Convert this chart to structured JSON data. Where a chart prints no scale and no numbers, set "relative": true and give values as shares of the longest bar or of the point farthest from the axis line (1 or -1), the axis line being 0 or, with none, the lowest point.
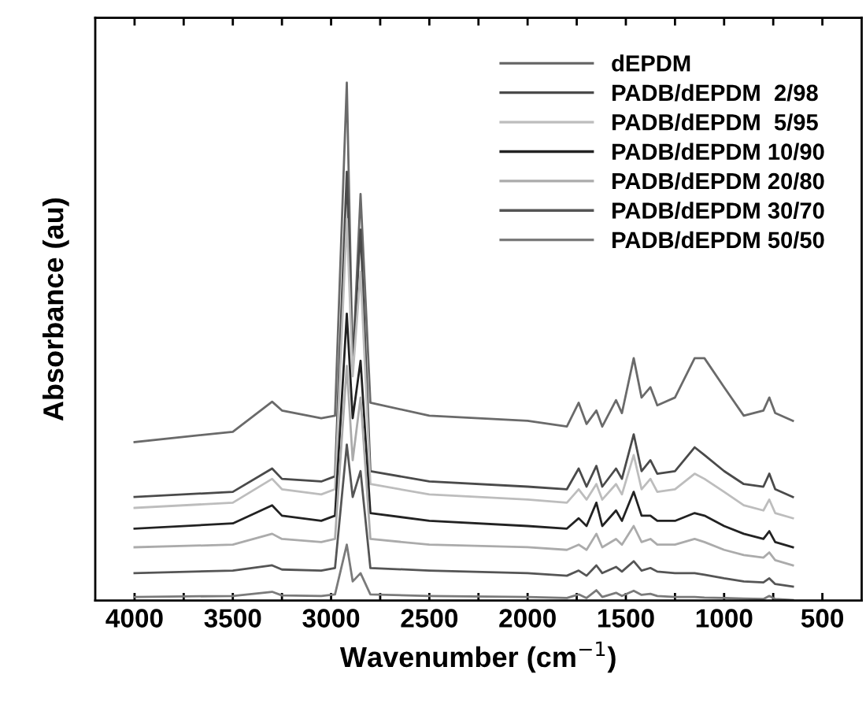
{
  "chart_data": {
    "type": "line",
    "xlabel": "Wavenumber (cm$^{−1}$)",
    "ylabel": "Absorbance (au)",
    "relative": true,
    "xlim": [
      4200,
      300
    ],
    "xticks": [
      4000,
      {
        "value": 3750,
        "label": null
      },
      3500,
      {
        "value": 3250,
        "label": null
      },
      3000,
      {
        "value": 2750,
        "label": null
      },
      2500,
      {
        "value": 2250,
        "label": null
      },
      2000,
      {
        "value": 1750,
        "label": null
      },
      1500,
      {
        "value": 1250,
        "label": null
      },
      1000,
      {
        "value": 750,
        "label": null
      },
      500
    ],
    "x": [
      4000,
      3500,
      3300,
      3250,
      3050,
      2980,
      2920,
      2890,
      2850,
      2800,
      2500,
      2000,
      1800,
      1740,
      1700,
      1650,
      1620,
      1550,
      1520,
      1460,
      1420,
      1375,
      1340,
      1250,
      1150,
      1100,
      1000,
      900,
      800,
      770,
      740,
      650
    ],
    "legend": "top right",
    "grid": false,
    "marker": "none",
    "line_style": "solid",
    "series": [
      {
        "name": "dEPDM",
        "color": "#6a6a6a",
        "values": [
          0.306,
          0.326,
          0.384,
          0.367,
          0.352,
          0.357,
          1.0,
          0.453,
          0.785,
          0.382,
          0.357,
          0.347,
          0.336,
          0.382,
          0.341,
          0.367,
          0.336,
          0.387,
          0.362,
          0.468,
          0.392,
          0.412,
          0.377,
          0.392,
          0.468,
          0.468,
          0.412,
          0.357,
          0.367,
          0.392,
          0.362,
          0.347
        ]
      },
      {
        "name": "PADB/dEPDM  2/98",
        "color": "#4a4a4a",
        "values": [
          0.2,
          0.21,
          0.255,
          0.235,
          0.23,
          0.24,
          0.828,
          0.453,
          0.716,
          0.25,
          0.23,
          0.22,
          0.215,
          0.255,
          0.22,
          0.26,
          0.22,
          0.255,
          0.235,
          0.321,
          0.25,
          0.271,
          0.245,
          0.25,
          0.296,
          0.281,
          0.25,
          0.225,
          0.22,
          0.245,
          0.215,
          0.2
        ]
      },
      {
        "name": "PADB/dEPDM  5/95",
        "color": "#bdbdbd",
        "values": [
          0.179,
          0.189,
          0.235,
          0.215,
          0.205,
          0.215,
          0.737,
          0.433,
          0.635,
          0.225,
          0.205,
          0.195,
          0.189,
          0.215,
          0.195,
          0.225,
          0.195,
          0.225,
          0.205,
          0.281,
          0.215,
          0.235,
          0.21,
          0.215,
          0.245,
          0.235,
          0.21,
          0.184,
          0.174,
          0.195,
          0.169,
          0.159
        ]
      },
      {
        "name": "PADB/dEPDM 10/90",
        "color": "#222222",
        "values": [
          0.139,
          0.149,
          0.184,
          0.164,
          0.154,
          0.164,
          0.554,
          0.352,
          0.463,
          0.169,
          0.154,
          0.144,
          0.139,
          0.159,
          0.144,
          0.189,
          0.144,
          0.174,
          0.154,
          0.21,
          0.164,
          0.164,
          0.154,
          0.154,
          0.169,
          0.164,
          0.144,
          0.129,
          0.119,
          0.134,
          0.113,
          0.103
        ]
      },
      {
        "name": "PADB/dEPDM 20/80",
        "color": "#ababab",
        "values": [
          0.103,
          0.108,
          0.129,
          0.119,
          0.113,
          0.119,
          0.453,
          0.271,
          0.392,
          0.119,
          0.108,
          0.103,
          0.098,
          0.108,
          0.098,
          0.129,
          0.103,
          0.119,
          0.108,
          0.144,
          0.113,
          0.119,
          0.108,
          0.108,
          0.119,
          0.113,
          0.098,
          0.088,
          0.083,
          0.093,
          0.078,
          0.068
        ]
      },
      {
        "name": "PADB/dEPDM 30/70",
        "color": "#555555",
        "values": [
          0.053,
          0.058,
          0.068,
          0.06,
          0.058,
          0.063,
          0.301,
          0.2,
          0.25,
          0.063,
          0.058,
          0.053,
          0.048,
          0.058,
          0.048,
          0.068,
          0.053,
          0.065,
          0.056,
          0.076,
          0.058,
          0.063,
          0.056,
          0.053,
          0.053,
          0.05,
          0.043,
          0.037,
          0.035,
          0.043,
          0.032,
          0.027
        ]
      },
      {
        "name": "PADB/dEPDM 50/50",
        "color": "#7a7a7a",
        "values": [
          0.007,
          0.009,
          0.017,
          0.01,
          0.009,
          0.012,
          0.108,
          0.037,
          0.053,
          0.012,
          0.009,
          0.007,
          0.005,
          0.012,
          0.005,
          0.02,
          0.007,
          0.015,
          0.009,
          0.019,
          0.011,
          0.013,
          0.009,
          0.007,
          0.007,
          0.006,
          0.005,
          0.004,
          0.003,
          0.009,
          0.003,
          0.001
        ]
      }
    ]
  }
}
